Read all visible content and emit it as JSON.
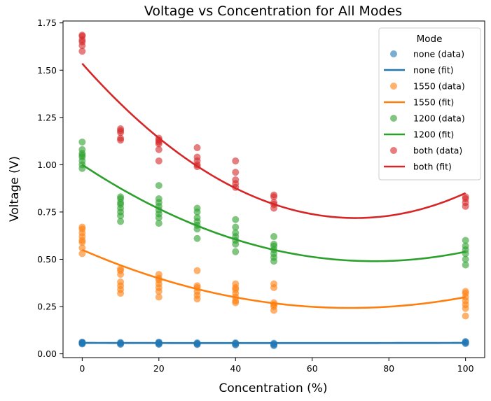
{
  "chart_data": {
    "type": "scatter",
    "title": "Voltage vs Concentration for All Modes",
    "xlabel": "Concentration (%)",
    "ylabel": "Voltage (V)",
    "xlim": [
      -5,
      105
    ],
    "ylim": [
      -0.02,
      1.76
    ],
    "xticks": [
      "0",
      "20",
      "40",
      "60",
      "80",
      "100"
    ],
    "xtick_values": [
      0,
      20,
      40,
      60,
      80,
      100
    ],
    "yticks": [
      "0.00",
      "0.25",
      "0.50",
      "0.75",
      "1.00",
      "1.25",
      "1.50",
      "1.75"
    ],
    "ytick_values": [
      0,
      0.25,
      0.5,
      0.75,
      1.0,
      1.25,
      1.5,
      1.75
    ],
    "grid": false,
    "legend": {
      "title": "Mode",
      "placement": "top-right",
      "entries": [
        "none (data)",
        "none (fit)",
        "1550 (data)",
        "1550 (fit)",
        "1200 (data)",
        "1200 (fit)",
        "both (data)",
        "both (fit)"
      ]
    },
    "series": [
      {
        "name": "none",
        "color": "#1f77b4",
        "points": [
          [
            0,
            0.052
          ],
          [
            0,
            0.055
          ],
          [
            0,
            0.058
          ],
          [
            0,
            0.06
          ],
          [
            0,
            0.062
          ],
          [
            10,
            0.05
          ],
          [
            10,
            0.054
          ],
          [
            10,
            0.057
          ],
          [
            10,
            0.06
          ],
          [
            20,
            0.05
          ],
          [
            20,
            0.053
          ],
          [
            20,
            0.056
          ],
          [
            20,
            0.059
          ],
          [
            20,
            0.062
          ],
          [
            30,
            0.049
          ],
          [
            30,
            0.052
          ],
          [
            30,
            0.055
          ],
          [
            30,
            0.058
          ],
          [
            40,
            0.047
          ],
          [
            40,
            0.051
          ],
          [
            40,
            0.055
          ],
          [
            40,
            0.058
          ],
          [
            50,
            0.043
          ],
          [
            50,
            0.048
          ],
          [
            50,
            0.052
          ],
          [
            50,
            0.056
          ],
          [
            100,
            0.054
          ],
          [
            100,
            0.058
          ],
          [
            100,
            0.062
          ],
          [
            100,
            0.065
          ]
        ],
        "fit": [
          0.0579,
          -4e-05,
          4e-07
        ]
      },
      {
        "name": "1550",
        "color": "#ff7f0e",
        "points": [
          [
            0,
            0.53
          ],
          [
            0,
            0.56
          ],
          [
            0,
            0.59
          ],
          [
            0,
            0.6
          ],
          [
            0,
            0.62
          ],
          [
            0,
            0.64
          ],
          [
            0,
            0.66
          ],
          [
            0,
            0.67
          ],
          [
            10,
            0.32
          ],
          [
            10,
            0.34
          ],
          [
            10,
            0.36
          ],
          [
            10,
            0.38
          ],
          [
            10,
            0.42
          ],
          [
            10,
            0.44
          ],
          [
            10,
            0.45
          ],
          [
            20,
            0.3
          ],
          [
            20,
            0.33
          ],
          [
            20,
            0.35
          ],
          [
            20,
            0.37
          ],
          [
            20,
            0.39
          ],
          [
            20,
            0.4
          ],
          [
            20,
            0.42
          ],
          [
            30,
            0.29
          ],
          [
            30,
            0.31
          ],
          [
            30,
            0.33
          ],
          [
            30,
            0.35
          ],
          [
            30,
            0.36
          ],
          [
            30,
            0.44
          ],
          [
            40,
            0.27
          ],
          [
            40,
            0.28
          ],
          [
            40,
            0.3
          ],
          [
            40,
            0.32
          ],
          [
            40,
            0.34
          ],
          [
            40,
            0.35
          ],
          [
            40,
            0.37
          ],
          [
            50,
            0.23
          ],
          [
            50,
            0.25
          ],
          [
            50,
            0.26
          ],
          [
            50,
            0.27
          ],
          [
            50,
            0.35
          ],
          [
            50,
            0.37
          ],
          [
            100,
            0.2
          ],
          [
            100,
            0.24
          ],
          [
            100,
            0.26
          ],
          [
            100,
            0.28
          ],
          [
            100,
            0.3
          ],
          [
            100,
            0.32
          ],
          [
            100,
            0.33
          ]
        ],
        "fit": [
          0.55,
          -0.0088,
          6.3e-05
        ]
      },
      {
        "name": "1200",
        "color": "#2ca02c",
        "points": [
          [
            0,
            0.98
          ],
          [
            0,
            1.0
          ],
          [
            0,
            1.02
          ],
          [
            0,
            1.04
          ],
          [
            0,
            1.05
          ],
          [
            0,
            1.06
          ],
          [
            0,
            1.08
          ],
          [
            0,
            1.12
          ],
          [
            10,
            0.7
          ],
          [
            10,
            0.73
          ],
          [
            10,
            0.75
          ],
          [
            10,
            0.77
          ],
          [
            10,
            0.79
          ],
          [
            10,
            0.8
          ],
          [
            10,
            0.82
          ],
          [
            10,
            0.83
          ],
          [
            20,
            0.69
          ],
          [
            20,
            0.72
          ],
          [
            20,
            0.74
          ],
          [
            20,
            0.76
          ],
          [
            20,
            0.78
          ],
          [
            20,
            0.8
          ],
          [
            20,
            0.82
          ],
          [
            20,
            0.89
          ],
          [
            30,
            0.61
          ],
          [
            30,
            0.66
          ],
          [
            30,
            0.68
          ],
          [
            30,
            0.7
          ],
          [
            30,
            0.72
          ],
          [
            30,
            0.75
          ],
          [
            30,
            0.77
          ],
          [
            40,
            0.54
          ],
          [
            40,
            0.58
          ],
          [
            40,
            0.6
          ],
          [
            40,
            0.62
          ],
          [
            40,
            0.64
          ],
          [
            40,
            0.67
          ],
          [
            40,
            0.71
          ],
          [
            50,
            0.49
          ],
          [
            50,
            0.51
          ],
          [
            50,
            0.53
          ],
          [
            50,
            0.55
          ],
          [
            50,
            0.57
          ],
          [
            50,
            0.58
          ],
          [
            50,
            0.62
          ],
          [
            100,
            0.47
          ],
          [
            100,
            0.5
          ],
          [
            100,
            0.53
          ],
          [
            100,
            0.55
          ],
          [
            100,
            0.57
          ],
          [
            100,
            0.6
          ]
        ],
        "fit": [
          1.0,
          -0.0134,
          8.8e-05
        ]
      },
      {
        "name": "both",
        "color": "#d62728",
        "points": [
          [
            0,
            1.6
          ],
          [
            0,
            1.63
          ],
          [
            0,
            1.65
          ],
          [
            0,
            1.66
          ],
          [
            0,
            1.68
          ],
          [
            0,
            1.685
          ],
          [
            10,
            1.13
          ],
          [
            10,
            1.14
          ],
          [
            10,
            1.17
          ],
          [
            10,
            1.18
          ],
          [
            10,
            1.19
          ],
          [
            20,
            1.02
          ],
          [
            20,
            1.08
          ],
          [
            20,
            1.11
          ],
          [
            20,
            1.12
          ],
          [
            20,
            1.13
          ],
          [
            20,
            1.14
          ],
          [
            30,
            0.99
          ],
          [
            30,
            1.0
          ],
          [
            30,
            1.02
          ],
          [
            30,
            1.04
          ],
          [
            30,
            1.09
          ],
          [
            40,
            0.88
          ],
          [
            40,
            0.9
          ],
          [
            40,
            0.92
          ],
          [
            40,
            0.96
          ],
          [
            40,
            1.02
          ],
          [
            50,
            0.77
          ],
          [
            50,
            0.79
          ],
          [
            50,
            0.8
          ],
          [
            50,
            0.83
          ],
          [
            50,
            0.84
          ],
          [
            100,
            0.78
          ],
          [
            100,
            0.8
          ],
          [
            100,
            0.82
          ],
          [
            100,
            0.83
          ]
        ],
        "fit": [
          1.535,
          -0.0229,
          0.0001605
        ]
      }
    ]
  }
}
